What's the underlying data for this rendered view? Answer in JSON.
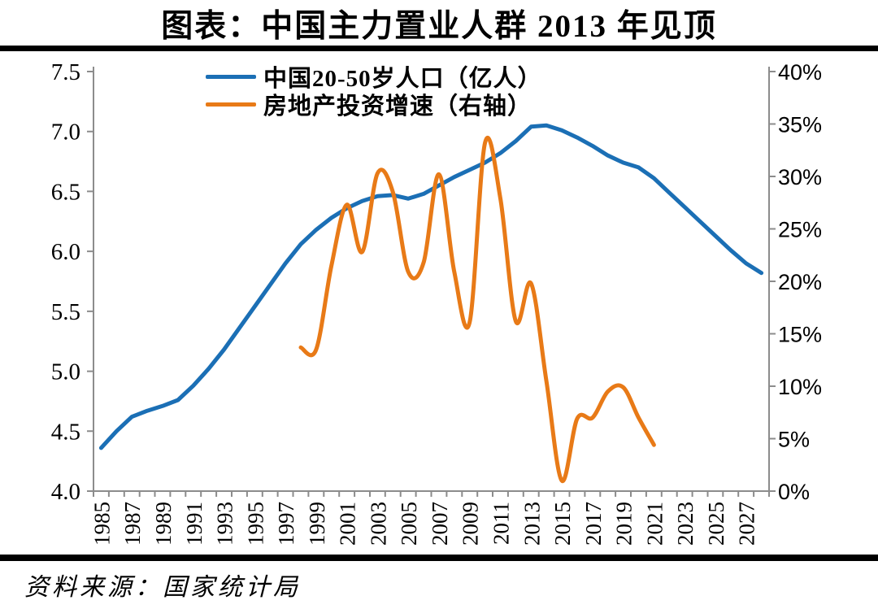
{
  "chart_data": {
    "type": "line",
    "title": "图表：中国主力置业人群 2013 年见顶",
    "source": "资料来源：国家统计局",
    "grid": false,
    "legend_position": "top-left-inside-plot",
    "colors": {
      "axis": "#8C8C8C",
      "text": "#000000",
      "rule": "#000000",
      "background": "#FFFFFF"
    },
    "x_axis": {
      "start_year": 1985,
      "end_year": 2028,
      "tick_interval_years": 1,
      "label_years": [
        1985,
        1987,
        1989,
        1991,
        1993,
        1995,
        1997,
        1999,
        2001,
        2003,
        2005,
        2007,
        2009,
        2011,
        2013,
        2015,
        2017,
        2019,
        2021,
        2023,
        2025,
        2027
      ]
    },
    "left_axis": {
      "min": 4.0,
      "max": 7.5,
      "step": 0.5,
      "labels": [
        "7.5",
        "7.0",
        "6.5",
        "6.0",
        "5.5",
        "5.0",
        "4.5",
        "4.0"
      ]
    },
    "right_axis": {
      "min": 0,
      "max": 40,
      "step": 5,
      "labels": [
        "40%",
        "35%",
        "30%",
        "25%",
        "20%",
        "15%",
        "10%",
        "5%",
        "0%"
      ]
    },
    "series": [
      {
        "name": "中国20-50岁人口（亿人）",
        "data_name": "population-series-line",
        "axis": "left",
        "color": "#1B6FB5",
        "smooth": false,
        "years": [
          1985,
          1986,
          1987,
          1988,
          1989,
          1990,
          1991,
          1992,
          1993,
          1994,
          1995,
          1996,
          1997,
          1998,
          1999,
          2000,
          2001,
          2002,
          2003,
          2004,
          2005,
          2006,
          2007,
          2008,
          2009,
          2010,
          2011,
          2012,
          2013,
          2014,
          2015,
          2016,
          2017,
          2018,
          2019,
          2020,
          2021,
          2022,
          2023,
          2024,
          2025,
          2026,
          2027,
          2028
        ],
        "values": [
          4.36,
          4.5,
          4.62,
          4.67,
          4.71,
          4.76,
          4.88,
          5.02,
          5.18,
          5.36,
          5.54,
          5.72,
          5.9,
          6.06,
          6.18,
          6.28,
          6.36,
          6.42,
          6.46,
          6.47,
          6.44,
          6.48,
          6.55,
          6.62,
          6.68,
          6.74,
          6.82,
          6.92,
          7.04,
          7.05,
          7.01,
          6.95,
          6.88,
          6.8,
          6.74,
          6.7,
          6.61,
          6.49,
          6.37,
          6.25,
          6.13,
          6.01,
          5.9,
          5.82
        ]
      },
      {
        "name": "房地产投资增速（右轴）",
        "data_name": "investment-series-line",
        "axis": "right",
        "color": "#E87A17",
        "smooth": true,
        "years": [
          1998,
          1999,
          2000,
          2001,
          2002,
          2003,
          2004,
          2005,
          2006,
          2007,
          2008,
          2009,
          2010,
          2011,
          2012,
          2013,
          2014,
          2015,
          2016,
          2017,
          2018,
          2019,
          2020,
          2021
        ],
        "values": [
          13.7,
          13.5,
          21.5,
          27.3,
          22.8,
          30.3,
          28.5,
          20.9,
          21.8,
          30.2,
          20.9,
          16.1,
          33.2,
          27.9,
          16.2,
          19.8,
          10.5,
          1.0,
          6.9,
          7.0,
          9.5,
          9.9,
          7.0,
          4.4
        ]
      }
    ]
  }
}
